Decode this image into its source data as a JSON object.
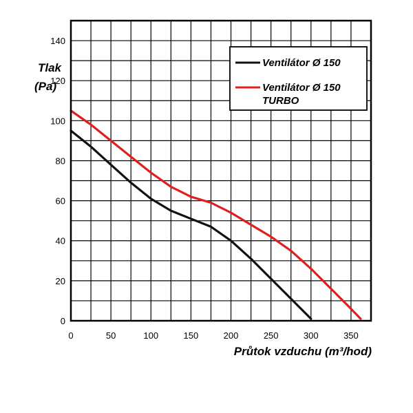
{
  "chart_data": {
    "type": "line",
    "ylabel_line1": "Tlak",
    "ylabel_line2": "(Pa)",
    "xlabel": "Průtok vzduchu (m³/hod)",
    "xlim": [
      0,
      375
    ],
    "ylim": [
      0,
      150
    ],
    "x_ticks": [
      0,
      50,
      100,
      150,
      200,
      250,
      300,
      350
    ],
    "y_ticks": [
      0,
      20,
      40,
      60,
      80,
      100,
      120,
      140
    ],
    "grid": true,
    "legend_position": "top-right",
    "series": [
      {
        "name": "Ventilátor Ø 150",
        "color": "#111111",
        "x": [
          0,
          25,
          50,
          75,
          100,
          125,
          150,
          175,
          200,
          225,
          250,
          275,
          300
        ],
        "y": [
          95,
          87,
          78,
          69,
          61,
          55,
          51,
          47,
          40,
          31,
          21,
          11,
          1
        ]
      },
      {
        "name_line1": "Ventilátor Ø 150",
        "name_line2": "TURBO",
        "color": "#e01e1e",
        "x": [
          0,
          25,
          50,
          75,
          100,
          125,
          150,
          175,
          200,
          225,
          250,
          275,
          300,
          325,
          350,
          362
        ],
        "y": [
          105,
          98,
          90,
          82,
          74,
          67,
          62,
          59,
          54,
          48,
          42,
          35,
          26,
          16,
          6,
          1
        ]
      }
    ]
  }
}
